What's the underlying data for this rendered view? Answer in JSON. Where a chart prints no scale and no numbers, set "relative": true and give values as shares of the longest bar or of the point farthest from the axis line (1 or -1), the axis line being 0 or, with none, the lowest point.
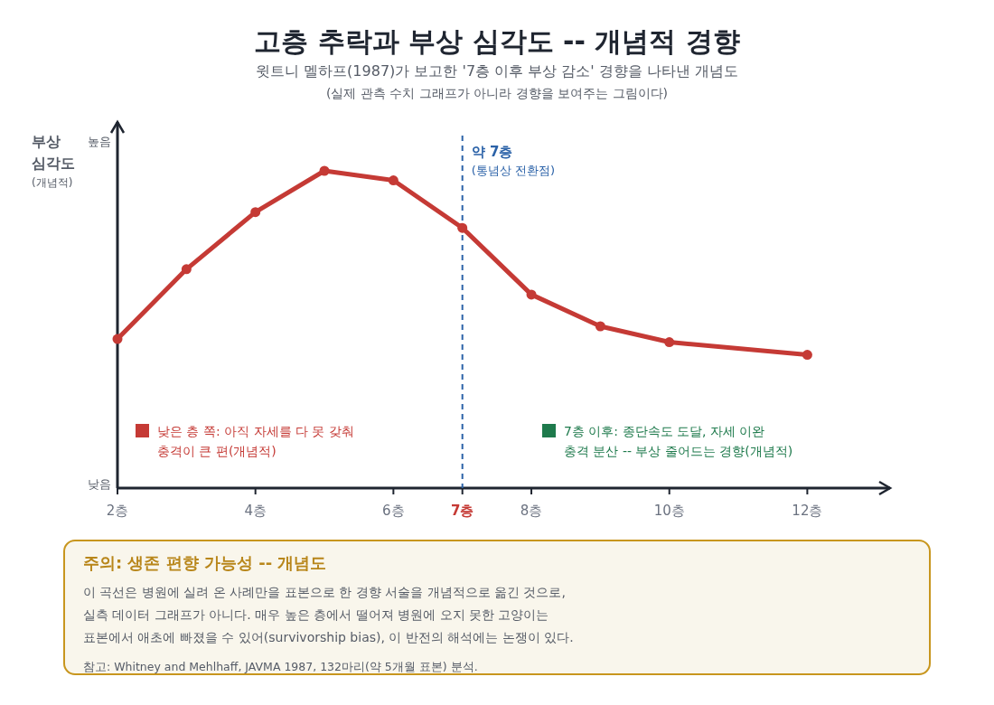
{
  "chart_data": {
    "type": "line",
    "title": "고층 추락과 부상 심각도 -- 개념적 경향",
    "subtitle": "윗트니 멜하프(1987)가 보고한 '7층 이후 부상 감소' 경향을 나타낸 개념도\n(실제 관측 수치 그래프가 아니라 경향을 보여주는 그림이다)",
    "ylabel": "부상\n심각도\n(개념적)",
    "relative": true,
    "x": [
      2,
      3,
      4,
      5,
      6,
      7,
      8,
      9,
      10,
      12
    ],
    "series": [
      {
        "color": "#c53a35",
        "values": [
          0.47,
          0.69,
          0.87,
          1,
          0.97,
          0.82,
          0.61,
          0.51,
          0.46,
          0.42
        ]
      }
    ],
    "xlim": [
      2,
      13.2
    ],
    "xticks": [
      {
        "value": 2,
        "label": "2층"
      },
      {
        "value": 4,
        "label": "4층"
      },
      {
        "value": 6,
        "label": "6층"
      },
      {
        "value": 7,
        "label": "7층"
      },
      {
        "value": 8,
        "label": "8층"
      },
      {
        "value": 10,
        "label": "10층"
      },
      {
        "value": 12,
        "label": "12층"
      }
    ],
    "ref_lines": [
      {
        "axis": "x",
        "value": 7,
        "label": "약 7층\n(통념상 전환점)",
        "color": "#2b62a8",
        "line_style": "dashed"
      }
    ],
    "marker": "circle",
    "line_style": "solid",
    "grid": false,
    "annotations": [
      "높음",
      "낮음",
      "낮은 층 쪽: 아직 자세를 다 못 갖춰\n충격이 큰 편(개념적)",
      "7층 이후: 종단속도 도달, 자세 이완\n충격 분산 -- 부상 줄어드는 경향(개념적)",
      "주의: 생존 편향 가능성 -- 개념도",
      "이 곡선은 병원에 실려 온 사례만을 표본으로 한 경향 서술을 개념적으로 옮긴 것으로,\n실측 데이터 그래프가 아니다. 매우 높은 층에서 떨어져 병원에 오지 못한 고양이는\n표본에서 애초에 빠졌을 수 있어(survivorship bias), 이 반전의 해석에는 논쟁이 있다.",
      "참고: Whitney and Mehlhaff, JAVMA 1987, 132마리(약 5개월 표본) 분석."
    ]
  }
}
